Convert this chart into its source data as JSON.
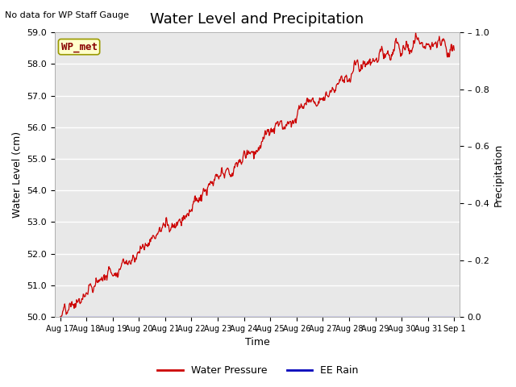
{
  "title": "Water Level and Precipitation",
  "top_left_text": "No data for WP Staff Gauge",
  "xlabel": "Time",
  "ylabel_left": "Water Level (cm)",
  "ylabel_right": "Precipitation",
  "legend_labels": [
    "Water Pressure",
    "EE Rain"
  ],
  "water_pressure_color": "#cc0000",
  "ee_rain_color": "#0000bb",
  "annotation_label": "WP_met",
  "annotation_bg": "#ffffcc",
  "annotation_border": "#999900",
  "annotation_text_color": "#880000",
  "ylim_left": [
    50.0,
    59.0
  ],
  "ylim_right": [
    0.0,
    1.0
  ],
  "yticks_left": [
    50.0,
    51.0,
    52.0,
    53.0,
    54.0,
    55.0,
    56.0,
    57.0,
    58.0,
    59.0
  ],
  "yticks_right": [
    0.0,
    0.2,
    0.4,
    0.6,
    0.8,
    1.0
  ],
  "x_tick_labels": [
    "Aug 17",
    "Aug 18",
    "Aug 19",
    "Aug 20",
    "Aug 21",
    "Aug 22",
    "Aug 23",
    "Aug 24",
    "Aug 25",
    "Aug 26",
    "Aug 27",
    "Aug 28",
    "Aug 29",
    "Aug 30",
    "Aug 31",
    "Sep 1"
  ],
  "axes_facecolor": "#e8e8e8",
  "grid_color": "#ffffff",
  "fig_facecolor": "#ffffff",
  "title_fontsize": 13,
  "axis_label_fontsize": 9,
  "tick_fontsize": 8
}
